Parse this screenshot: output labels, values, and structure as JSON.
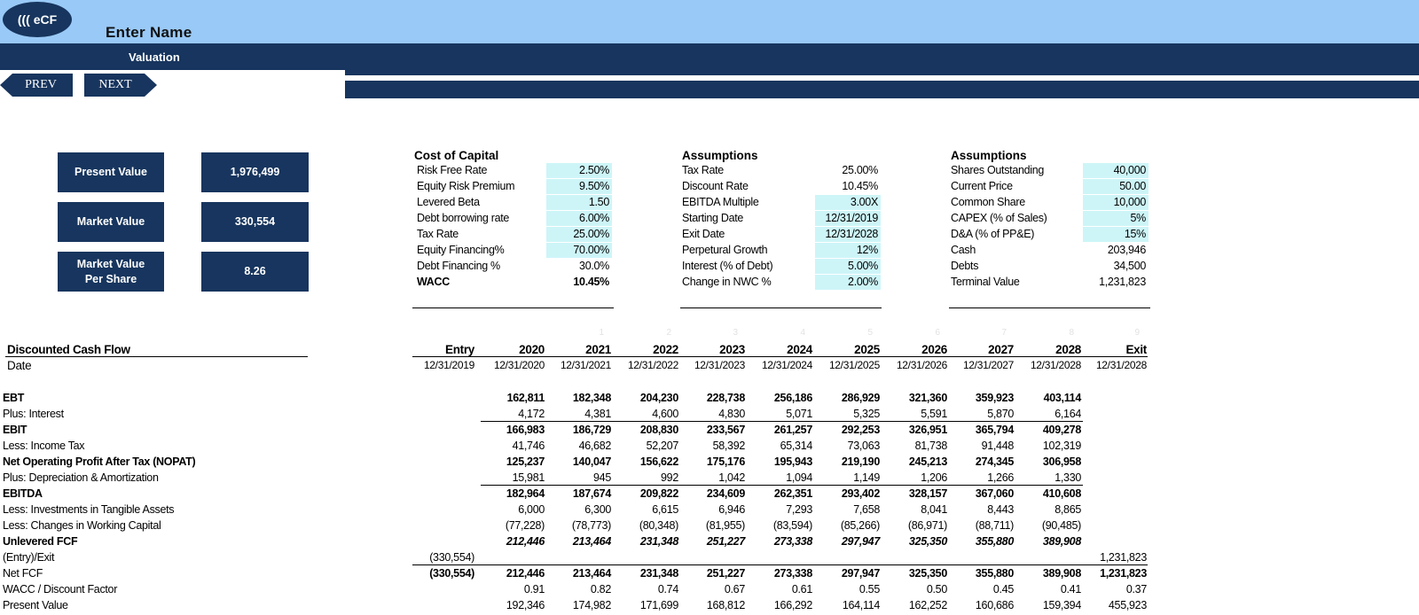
{
  "header": {
    "logo_text": "((( eCF",
    "app_name": "Enter Name",
    "page_label": "Valuation",
    "prev_label": "PREV",
    "next_label": "NEXT"
  },
  "summary": [
    {
      "label": "Present Value",
      "value": "1,976,499"
    },
    {
      "label": "Market Value",
      "value": "330,554"
    },
    {
      "label": "Market Value\nPer Share",
      "value": "8.26"
    }
  ],
  "cost_of_capital": {
    "title": "Cost of Capital",
    "rows": [
      {
        "label": "Risk Free Rate",
        "value": "2.50%",
        "input": true
      },
      {
        "label": "Equity Risk Premium",
        "value": "9.50%",
        "input": true
      },
      {
        "label": "Levered Beta",
        "value": "1.50",
        "input": true
      },
      {
        "label": "Debt borrowing rate",
        "value": "6.00%",
        "input": true
      },
      {
        "label": "Tax Rate",
        "value": "25.00%",
        "input": true
      },
      {
        "label": "Equity Financing%",
        "value": "70.00%",
        "input": true
      },
      {
        "label": "Debt Financing %",
        "value": "30.0%",
        "input": false
      },
      {
        "label": "WACC",
        "value": "10.45%",
        "input": false,
        "bold": true
      }
    ]
  },
  "assumptions_1": {
    "title": "Assumptions",
    "rows": [
      {
        "label": "Tax Rate",
        "value": "25.00%",
        "input": false
      },
      {
        "label": "Discount Rate",
        "value": "10.45%",
        "input": false
      },
      {
        "label": "EBITDA Multiple",
        "value": "3.00X",
        "input": true
      },
      {
        "label": "Starting Date",
        "value": "12/31/2019",
        "input": true
      },
      {
        "label": "Exit Date",
        "value": "12/31/2028",
        "input": true
      },
      {
        "label": "Perpetural Growth",
        "value": "12%",
        "input": true
      },
      {
        "label": "Interest (% of Debt)",
        "value": "5.00%",
        "input": true
      },
      {
        "label": "Change in NWC %",
        "value": "2.00%",
        "input": true
      }
    ]
  },
  "assumptions_2": {
    "title": "Assumptions",
    "rows": [
      {
        "label": "Shares Outstanding",
        "value": "40,000",
        "input": true
      },
      {
        "label": "Current Price",
        "value": "50.00",
        "input": true
      },
      {
        "label": "Common Share",
        "value": "10,000",
        "input": true
      },
      {
        "label": "CAPEX (% of Sales)",
        "value": "5%",
        "input": true
      },
      {
        "label": "D&A (% of PP&E)",
        "value": "15%",
        "input": true
      },
      {
        "label": "Cash",
        "value": "203,946",
        "input": false
      },
      {
        "label": "Debts",
        "value": "34,500",
        "input": false
      },
      {
        "label": "Terminal Value",
        "value": "1,231,823",
        "input": false
      }
    ]
  },
  "dcf": {
    "title": "Discounted Cash Flow",
    "date_label": "Date",
    "col_index": [
      "",
      "",
      "1",
      "2",
      "3",
      "4",
      "5",
      "6",
      "7",
      "8",
      "9"
    ],
    "columns": [
      "Entry",
      "2020",
      "2021",
      "2022",
      "2023",
      "2024",
      "2025",
      "2026",
      "2027",
      "2028",
      "Exit"
    ],
    "dates": [
      "12/31/2019",
      "12/31/2020",
      "12/31/2021",
      "12/31/2022",
      "12/31/2023",
      "12/31/2024",
      "12/31/2025",
      "12/31/2026",
      "12/31/2027",
      "12/31/2028",
      "12/31/2028"
    ],
    "rows": [
      {
        "label": "EBT",
        "style": "bold",
        "values": [
          "",
          "162,811",
          "182,348",
          "204,230",
          "228,738",
          "256,186",
          "286,929",
          "321,360",
          "359,923",
          "403,114",
          ""
        ]
      },
      {
        "label": "Plus: Interest",
        "style": "",
        "values": [
          "",
          "4,172",
          "4,381",
          "4,600",
          "4,830",
          "5,071",
          "5,325",
          "5,591",
          "5,870",
          "6,164",
          ""
        ]
      },
      {
        "label": "EBIT",
        "style": "bold",
        "values": [
          "",
          "166,983",
          "186,729",
          "208,830",
          "233,567",
          "261,257",
          "292,253",
          "326,951",
          "365,794",
          "409,278",
          ""
        ]
      },
      {
        "label": "Less: Income Tax",
        "style": "",
        "values": [
          "",
          "41,746",
          "46,682",
          "52,207",
          "58,392",
          "65,314",
          "73,063",
          "81,738",
          "91,448",
          "102,319",
          ""
        ]
      },
      {
        "label": "Net Operating Profit After Tax (NOPAT)",
        "style": "bold",
        "values": [
          "",
          "125,237",
          "140,047",
          "156,622",
          "175,176",
          "195,943",
          "219,190",
          "245,213",
          "274,345",
          "306,958",
          ""
        ]
      },
      {
        "label": "Plus: Depreciation & Amortization",
        "style": "",
        "values": [
          "",
          "15,981",
          "945",
          "992",
          "1,042",
          "1,094",
          "1,149",
          "1,206",
          "1,266",
          "1,330",
          ""
        ]
      },
      {
        "label": "EBITDA",
        "style": "bold",
        "values": [
          "",
          "182,964",
          "187,674",
          "209,822",
          "234,609",
          "262,351",
          "293,402",
          "328,157",
          "367,060",
          "410,608",
          ""
        ]
      },
      {
        "label": "Less: Investments in Tangible Assets",
        "style": "",
        "values": [
          "",
          "6,000",
          "6,300",
          "6,615",
          "6,946",
          "7,293",
          "7,658",
          "8,041",
          "8,443",
          "8,865",
          ""
        ]
      },
      {
        "label": "Less: Changes in Working Capital",
        "style": "",
        "values": [
          "",
          "(77,228)",
          "(78,773)",
          "(80,348)",
          "(81,955)",
          "(83,594)",
          "(85,266)",
          "(86,971)",
          "(88,711)",
          "(90,485)",
          ""
        ]
      },
      {
        "label": "Unlevered FCF",
        "style": "bolditalic",
        "values": [
          "",
          "212,446",
          "213,464",
          "231,348",
          "251,227",
          "273,338",
          "297,947",
          "325,350",
          "355,880",
          "389,908",
          ""
        ]
      },
      {
        "label": "(Entry)/Exit",
        "style": "",
        "values": [
          "(330,554)",
          "",
          "",
          "",
          "",
          "",
          "",
          "",
          "",
          "",
          "1,231,823"
        ]
      },
      {
        "label": "Net FCF",
        "style": "boldvals",
        "values": [
          "(330,554)",
          "212,446",
          "213,464",
          "231,348",
          "251,227",
          "273,338",
          "297,947",
          "325,350",
          "355,880",
          "389,908",
          "1,231,823"
        ]
      },
      {
        "label": "WACC / Discount Factor",
        "style": "",
        "values": [
          "",
          "0.91",
          "0.82",
          "0.74",
          "0.67",
          "0.61",
          "0.55",
          "0.50",
          "0.45",
          "0.41",
          "0.37"
        ]
      },
      {
        "label": "Present Value",
        "style": "",
        "values": [
          "",
          "192,346",
          "174,982",
          "171,699",
          "168,812",
          "166,292",
          "164,114",
          "162,252",
          "160,686",
          "159,394",
          "455,923"
        ]
      }
    ]
  }
}
